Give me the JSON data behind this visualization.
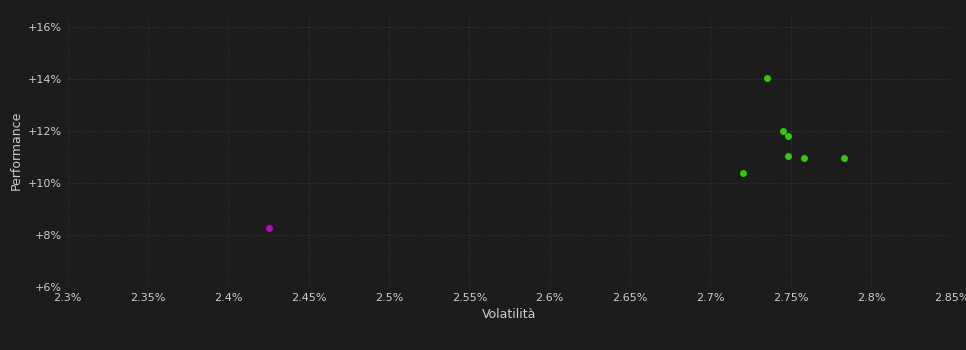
{
  "background_color": "#1c1c1c",
  "plot_bg_color": "#1c1c1c",
  "grid_color": "#3a3a3a",
  "text_color": "#cccccc",
  "xlabel": "Volatilità",
  "ylabel": "Performance",
  "xlim": [
    0.023,
    0.0285
  ],
  "ylim": [
    0.06,
    0.165
  ],
  "xticks": [
    0.023,
    0.0235,
    0.024,
    0.0245,
    0.025,
    0.0255,
    0.026,
    0.0265,
    0.027,
    0.0275,
    0.028,
    0.0285
  ],
  "yticks": [
    0.06,
    0.08,
    0.1,
    0.12,
    0.14,
    0.16
  ],
  "green_points": [
    [
      0.02735,
      0.1405
    ],
    [
      0.02745,
      0.12
    ],
    [
      0.02748,
      0.118
    ],
    [
      0.02748,
      0.1105
    ],
    [
      0.02758,
      0.1095
    ],
    [
      0.02783,
      0.1095
    ],
    [
      0.0272,
      0.1038
    ]
  ],
  "magenta_point": [
    0.02425,
    0.0828
  ],
  "green_color": "#33cc00",
  "magenta_color": "#cc00cc",
  "marker_size": 5,
  "tick_fontsize": 8,
  "label_fontsize": 9
}
